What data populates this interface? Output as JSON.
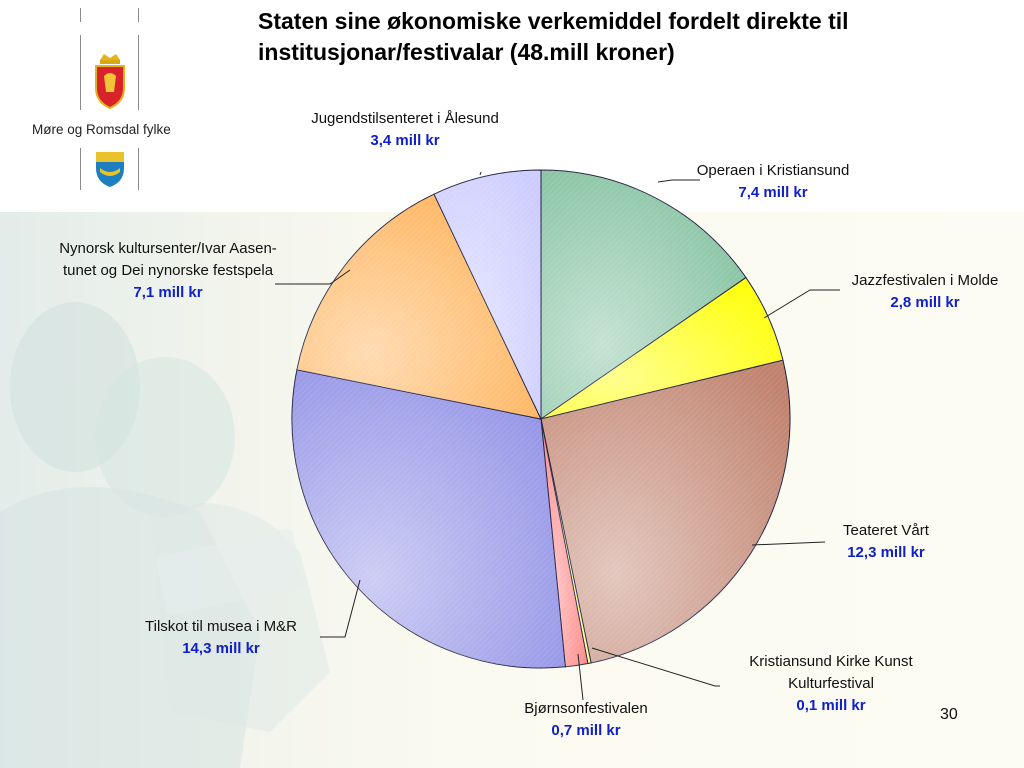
{
  "slide": {
    "title": "Staten sine økonomiske verkemiddel fordelt direkte til institusjonar/festivalar (48.mill kroner)",
    "logo_text": "Møre og Romsdal fylke",
    "page_number": "30"
  },
  "chart_data": {
    "type": "pie",
    "title": "Staten sine økonomiske verkemiddel fordelt direkte til institusjonar/festivalar (48.mill kroner)",
    "unit": "mill kr",
    "start_angle_deg": 0,
    "direction": "clockwise",
    "slices": [
      {
        "label": "Operaen i Kristiansund",
        "value": 7.4,
        "value_text": "7,4 mill kr",
        "color": "#7fbf9c"
      },
      {
        "label": "Jazzfestivalen i Molde",
        "value": 2.8,
        "value_text": "2,8 mill kr",
        "color": "#ffff00"
      },
      {
        "label": "Teateret Vårt",
        "value": 12.3,
        "value_text": "12,3 mill kr",
        "color": "#c0826e"
      },
      {
        "label": "Kristiansund Kirke Kunst Kulturfestival",
        "value": 0.1,
        "value_text": "0,1 mill kr",
        "color": "#ffff80"
      },
      {
        "label": "Bjørnsonfestivalen",
        "value": 0.7,
        "value_text": "0,7 mill kr",
        "color": "#ff8080"
      },
      {
        "label": "Tilskot til musea i M&R",
        "value": 14.3,
        "value_text": "14,3 mill kr",
        "color": "#8f8fe6"
      },
      {
        "label": "Nynorsk kultursenter/Ivar Aasen-tunet og Dei nynorske festspela",
        "value": 7.1,
        "value_text": "7,1 mill kr",
        "color": "#ffb055"
      },
      {
        "label": "Jugendstilsenteret i Ålesund",
        "value": 3.4,
        "value_text": "3,4 mill kr",
        "color": "#ccccff"
      }
    ]
  }
}
